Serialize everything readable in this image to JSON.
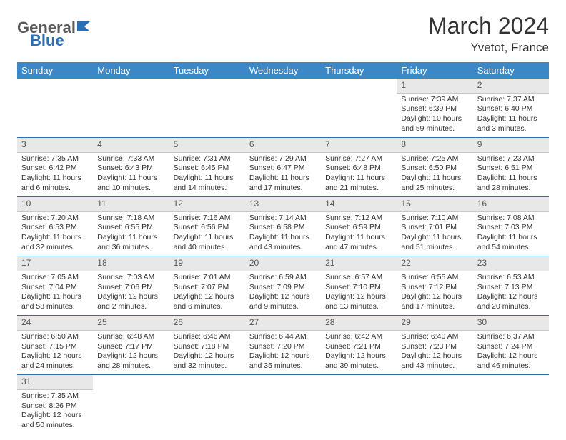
{
  "logo": {
    "part1": "General",
    "part2": "Blue"
  },
  "title": "March 2024",
  "location": "Yvetot, France",
  "colors": {
    "header_bg": "#3b87c8",
    "header_fg": "#ffffff",
    "daynum_bg": "#e8e8e8",
    "week_sep": "#2a6fb5",
    "text": "#333333"
  },
  "weekdays": [
    "Sunday",
    "Monday",
    "Tuesday",
    "Wednesday",
    "Thursday",
    "Friday",
    "Saturday"
  ],
  "weeks": [
    [
      {
        "n": "",
        "sr": "",
        "ss": "",
        "dl1": "",
        "dl2": ""
      },
      {
        "n": "",
        "sr": "",
        "ss": "",
        "dl1": "",
        "dl2": ""
      },
      {
        "n": "",
        "sr": "",
        "ss": "",
        "dl1": "",
        "dl2": ""
      },
      {
        "n": "",
        "sr": "",
        "ss": "",
        "dl1": "",
        "dl2": ""
      },
      {
        "n": "",
        "sr": "",
        "ss": "",
        "dl1": "",
        "dl2": ""
      },
      {
        "n": "1",
        "sr": "Sunrise: 7:39 AM",
        "ss": "Sunset: 6:39 PM",
        "dl1": "Daylight: 10 hours",
        "dl2": "and 59 minutes."
      },
      {
        "n": "2",
        "sr": "Sunrise: 7:37 AM",
        "ss": "Sunset: 6:40 PM",
        "dl1": "Daylight: 11 hours",
        "dl2": "and 3 minutes."
      }
    ],
    [
      {
        "n": "3",
        "sr": "Sunrise: 7:35 AM",
        "ss": "Sunset: 6:42 PM",
        "dl1": "Daylight: 11 hours",
        "dl2": "and 6 minutes."
      },
      {
        "n": "4",
        "sr": "Sunrise: 7:33 AM",
        "ss": "Sunset: 6:43 PM",
        "dl1": "Daylight: 11 hours",
        "dl2": "and 10 minutes."
      },
      {
        "n": "5",
        "sr": "Sunrise: 7:31 AM",
        "ss": "Sunset: 6:45 PM",
        "dl1": "Daylight: 11 hours",
        "dl2": "and 14 minutes."
      },
      {
        "n": "6",
        "sr": "Sunrise: 7:29 AM",
        "ss": "Sunset: 6:47 PM",
        "dl1": "Daylight: 11 hours",
        "dl2": "and 17 minutes."
      },
      {
        "n": "7",
        "sr": "Sunrise: 7:27 AM",
        "ss": "Sunset: 6:48 PM",
        "dl1": "Daylight: 11 hours",
        "dl2": "and 21 minutes."
      },
      {
        "n": "8",
        "sr": "Sunrise: 7:25 AM",
        "ss": "Sunset: 6:50 PM",
        "dl1": "Daylight: 11 hours",
        "dl2": "and 25 minutes."
      },
      {
        "n": "9",
        "sr": "Sunrise: 7:23 AM",
        "ss": "Sunset: 6:51 PM",
        "dl1": "Daylight: 11 hours",
        "dl2": "and 28 minutes."
      }
    ],
    [
      {
        "n": "10",
        "sr": "Sunrise: 7:20 AM",
        "ss": "Sunset: 6:53 PM",
        "dl1": "Daylight: 11 hours",
        "dl2": "and 32 minutes."
      },
      {
        "n": "11",
        "sr": "Sunrise: 7:18 AM",
        "ss": "Sunset: 6:55 PM",
        "dl1": "Daylight: 11 hours",
        "dl2": "and 36 minutes."
      },
      {
        "n": "12",
        "sr": "Sunrise: 7:16 AM",
        "ss": "Sunset: 6:56 PM",
        "dl1": "Daylight: 11 hours",
        "dl2": "and 40 minutes."
      },
      {
        "n": "13",
        "sr": "Sunrise: 7:14 AM",
        "ss": "Sunset: 6:58 PM",
        "dl1": "Daylight: 11 hours",
        "dl2": "and 43 minutes."
      },
      {
        "n": "14",
        "sr": "Sunrise: 7:12 AM",
        "ss": "Sunset: 6:59 PM",
        "dl1": "Daylight: 11 hours",
        "dl2": "and 47 minutes."
      },
      {
        "n": "15",
        "sr": "Sunrise: 7:10 AM",
        "ss": "Sunset: 7:01 PM",
        "dl1": "Daylight: 11 hours",
        "dl2": "and 51 minutes."
      },
      {
        "n": "16",
        "sr": "Sunrise: 7:08 AM",
        "ss": "Sunset: 7:03 PM",
        "dl1": "Daylight: 11 hours",
        "dl2": "and 54 minutes."
      }
    ],
    [
      {
        "n": "17",
        "sr": "Sunrise: 7:05 AM",
        "ss": "Sunset: 7:04 PM",
        "dl1": "Daylight: 11 hours",
        "dl2": "and 58 minutes."
      },
      {
        "n": "18",
        "sr": "Sunrise: 7:03 AM",
        "ss": "Sunset: 7:06 PM",
        "dl1": "Daylight: 12 hours",
        "dl2": "and 2 minutes."
      },
      {
        "n": "19",
        "sr": "Sunrise: 7:01 AM",
        "ss": "Sunset: 7:07 PM",
        "dl1": "Daylight: 12 hours",
        "dl2": "and 6 minutes."
      },
      {
        "n": "20",
        "sr": "Sunrise: 6:59 AM",
        "ss": "Sunset: 7:09 PM",
        "dl1": "Daylight: 12 hours",
        "dl2": "and 9 minutes."
      },
      {
        "n": "21",
        "sr": "Sunrise: 6:57 AM",
        "ss": "Sunset: 7:10 PM",
        "dl1": "Daylight: 12 hours",
        "dl2": "and 13 minutes."
      },
      {
        "n": "22",
        "sr": "Sunrise: 6:55 AM",
        "ss": "Sunset: 7:12 PM",
        "dl1": "Daylight: 12 hours",
        "dl2": "and 17 minutes."
      },
      {
        "n": "23",
        "sr": "Sunrise: 6:53 AM",
        "ss": "Sunset: 7:13 PM",
        "dl1": "Daylight: 12 hours",
        "dl2": "and 20 minutes."
      }
    ],
    [
      {
        "n": "24",
        "sr": "Sunrise: 6:50 AM",
        "ss": "Sunset: 7:15 PM",
        "dl1": "Daylight: 12 hours",
        "dl2": "and 24 minutes."
      },
      {
        "n": "25",
        "sr": "Sunrise: 6:48 AM",
        "ss": "Sunset: 7:17 PM",
        "dl1": "Daylight: 12 hours",
        "dl2": "and 28 minutes."
      },
      {
        "n": "26",
        "sr": "Sunrise: 6:46 AM",
        "ss": "Sunset: 7:18 PM",
        "dl1": "Daylight: 12 hours",
        "dl2": "and 32 minutes."
      },
      {
        "n": "27",
        "sr": "Sunrise: 6:44 AM",
        "ss": "Sunset: 7:20 PM",
        "dl1": "Daylight: 12 hours",
        "dl2": "and 35 minutes."
      },
      {
        "n": "28",
        "sr": "Sunrise: 6:42 AM",
        "ss": "Sunset: 7:21 PM",
        "dl1": "Daylight: 12 hours",
        "dl2": "and 39 minutes."
      },
      {
        "n": "29",
        "sr": "Sunrise: 6:40 AM",
        "ss": "Sunset: 7:23 PM",
        "dl1": "Daylight: 12 hours",
        "dl2": "and 43 minutes."
      },
      {
        "n": "30",
        "sr": "Sunrise: 6:37 AM",
        "ss": "Sunset: 7:24 PM",
        "dl1": "Daylight: 12 hours",
        "dl2": "and 46 minutes."
      }
    ],
    [
      {
        "n": "31",
        "sr": "Sunrise: 7:35 AM",
        "ss": "Sunset: 8:26 PM",
        "dl1": "Daylight: 12 hours",
        "dl2": "and 50 minutes."
      },
      {
        "n": "",
        "sr": "",
        "ss": "",
        "dl1": "",
        "dl2": ""
      },
      {
        "n": "",
        "sr": "",
        "ss": "",
        "dl1": "",
        "dl2": ""
      },
      {
        "n": "",
        "sr": "",
        "ss": "",
        "dl1": "",
        "dl2": ""
      },
      {
        "n": "",
        "sr": "",
        "ss": "",
        "dl1": "",
        "dl2": ""
      },
      {
        "n": "",
        "sr": "",
        "ss": "",
        "dl1": "",
        "dl2": ""
      },
      {
        "n": "",
        "sr": "",
        "ss": "",
        "dl1": "",
        "dl2": ""
      }
    ]
  ]
}
